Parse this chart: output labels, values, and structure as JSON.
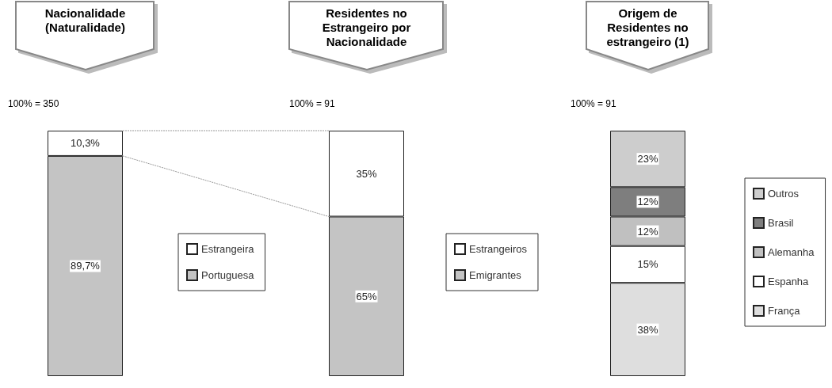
{
  "chart_data": [
    {
      "type": "bar",
      "title": "Nacionalidade (Naturalidade)",
      "stacked": true,
      "categories": [
        null
      ],
      "ylim": [
        0,
        100
      ],
      "tick_labels": false,
      "legend": "right",
      "annotations": [
        "100% = 350"
      ],
      "series": [
        {
          "name": "Portuguesa",
          "color": "#c4c4c4",
          "values": [
            89.7
          ],
          "value_labels": [
            "89,7%"
          ]
        },
        {
          "name": "Estrangeira",
          "color": "#ffffff",
          "values": [
            10.3
          ],
          "value_labels": [
            "10,3%"
          ]
        }
      ]
    },
    {
      "type": "bar",
      "title": "Residentes no Estrangeiro por Nacionalidade",
      "stacked": true,
      "categories": [
        null
      ],
      "ylim": [
        0,
        100
      ],
      "tick_labels": false,
      "legend": "right",
      "annotations": [
        "100% = 91"
      ],
      "series": [
        {
          "name": "Emigrantes",
          "color": "#c4c4c4",
          "values": [
            65
          ],
          "value_labels": [
            "65%"
          ]
        },
        {
          "name": "Estrangeiros",
          "color": "#ffffff",
          "values": [
            35
          ],
          "value_labels": [
            "35%"
          ]
        }
      ]
    },
    {
      "type": "bar",
      "title": "Origem de Residentes no estrangeiro (1)",
      "stacked": true,
      "categories": [
        null
      ],
      "ylim": [
        0,
        100
      ],
      "tick_labels": false,
      "legend": "right",
      "annotations": [
        "100% = 91"
      ],
      "series": [
        {
          "name": "França",
          "color": "#dedede",
          "values": [
            38
          ],
          "value_labels": [
            "38%"
          ]
        },
        {
          "name": "Espanha",
          "color": "#ffffff",
          "values": [
            15
          ],
          "value_labels": [
            "15%"
          ]
        },
        {
          "name": "Alemanha",
          "color": "#c0c0c0",
          "values": [
            12
          ],
          "value_labels": [
            "12%"
          ]
        },
        {
          "name": "Brasil",
          "color": "#7e7e7e",
          "values": [
            12
          ],
          "value_labels": [
            "12%"
          ]
        },
        {
          "name": "Outros",
          "color": "#cdcdcd",
          "values": [
            23
          ],
          "value_labels": [
            "23%"
          ]
        }
      ]
    }
  ]
}
